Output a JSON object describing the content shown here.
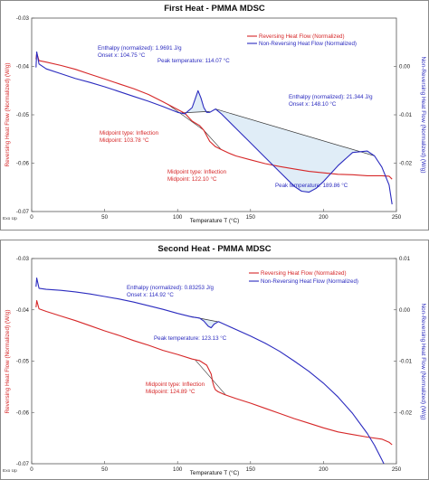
{
  "chart_data": [
    {
      "type": "line",
      "title": "First Heat - PMMA MDSC",
      "xlabel": "Temperature T (°C)",
      "ylabel": "Reversing Heat Flow (Normalized) (W/g)",
      "y2label": "Non-Reversing Heat Flow (Normalized) (W/g)",
      "xlim": [
        0,
        250
      ],
      "ylim": [
        -0.07,
        -0.03
      ],
      "y2lim": [
        -0.03,
        0.01
      ],
      "x_ticks": [
        "0",
        "50",
        "100",
        "150",
        "200",
        "250"
      ],
      "y_ticks": [
        "-0.03",
        "-0.04",
        "-0.05",
        "-0.06",
        "-0.07"
      ],
      "y2_ticks": [
        "0.00",
        "-0.01",
        "-0.02"
      ],
      "exo_label": "Exo Up",
      "legend_position": "top-right",
      "legend": [
        "Reversing Heat Flow (Normalized)",
        "Non-Reversing Heat Flow (Normalized)"
      ],
      "series": [
        {
          "name": "Reversing Heat Flow (Normalized)",
          "axis": "left",
          "color": "#d62728",
          "x": [
            3,
            3.5,
            5,
            10,
            20,
            30,
            40,
            50,
            60,
            70,
            80,
            90,
            100,
            105,
            110,
            115,
            118,
            122,
            126,
            130,
            135,
            140,
            150,
            160,
            170,
            180,
            190,
            200,
            210,
            220,
            230,
            240,
            245,
            247
          ],
          "y": [
            -0.0385,
            -0.0372,
            -0.0388,
            -0.0391,
            -0.0398,
            -0.0406,
            -0.0416,
            -0.0426,
            -0.0436,
            -0.0446,
            -0.0458,
            -0.0473,
            -0.0489,
            -0.0497,
            -0.0513,
            -0.0522,
            -0.0532,
            -0.0555,
            -0.0566,
            -0.0572,
            -0.0579,
            -0.0585,
            -0.0593,
            -0.0601,
            -0.0607,
            -0.0612,
            -0.0617,
            -0.062,
            -0.0623,
            -0.0624,
            -0.0626,
            -0.0626,
            -0.0627,
            -0.0633
          ]
        },
        {
          "name": "Non-Reversing Heat Flow (Normalized)",
          "axis": "right",
          "color": "#2b2bbf",
          "x": [
            3,
            3.5,
            5,
            10,
            20,
            30,
            40,
            50,
            60,
            70,
            80,
            90,
            100,
            105,
            110,
            112,
            114,
            116,
            118,
            120,
            122,
            126,
            130,
            140,
            150,
            160,
            170,
            180,
            185,
            190,
            195,
            200,
            210,
            220,
            230,
            235,
            240,
            245,
            247
          ],
          "y": [
            -0.0002,
            0.003,
            0.0005,
            -0.0005,
            -0.0015,
            -0.0025,
            -0.0033,
            -0.0042,
            -0.0052,
            -0.0062,
            -0.0072,
            -0.0083,
            -0.0095,
            -0.0098,
            -0.0085,
            -0.0068,
            -0.005,
            -0.0065,
            -0.0085,
            -0.0095,
            -0.0095,
            -0.0088,
            -0.0098,
            -0.0128,
            -0.0158,
            -0.0188,
            -0.0218,
            -0.0248,
            -0.0258,
            -0.026,
            -0.0252,
            -0.0238,
            -0.0205,
            -0.0178,
            -0.0175,
            -0.0185,
            -0.0208,
            -0.0245,
            -0.0285
          ]
        }
      ],
      "baselines": [
        {
          "series": "Non-Reversing Heat Flow (Normalized)",
          "x": [
            103,
            122
          ],
          "y": [
            -0.0096,
            -0.0093
          ]
        },
        {
          "series": "Non-Reversing Heat Flow (Normalized)",
          "x": [
            126,
            235
          ],
          "y": [
            -0.0088,
            -0.0185
          ]
        }
      ],
      "annotations": [
        {
          "text": "Enthalpy (normalized): 1.9691 J/g",
          "color": "#2b2bbf"
        },
        {
          "text": "Onset x: 104.75 °C",
          "color": "#2b2bbf"
        },
        {
          "text": "Peak temperature: 114.07 °C",
          "color": "#2b2bbf"
        },
        {
          "text": "Enthalpy (normalized): 21.344 J/g",
          "color": "#2b2bbf"
        },
        {
          "text": "Onset x: 148.10 °C",
          "color": "#2b2bbf"
        },
        {
          "text": "Peak temperature: 189.86 °C",
          "color": "#2b2bbf"
        },
        {
          "text": "Midpoint type: Inflection",
          "color": "#d62728"
        },
        {
          "text": "Midpoint: 103.78 °C",
          "color": "#d62728"
        },
        {
          "text": "Midpoint type: Inflection",
          "color": "#d62728"
        },
        {
          "text": "Midpoint: 122.10 °C",
          "color": "#d62728"
        }
      ]
    },
    {
      "type": "line",
      "title": "Second Heat - PMMA MDSC",
      "xlabel": "Temperature T (°C)",
      "ylabel": "Reversing Heat Flow (Normalized) (W/g)",
      "y2label": "Non-Reversing Heat Flow (Normalized) (W/g)",
      "xlim": [
        0,
        250
      ],
      "ylim": [
        -0.07,
        -0.03
      ],
      "y2lim": [
        -0.03,
        0.01
      ],
      "x_ticks": [
        "0",
        "50",
        "100",
        "150",
        "200",
        "250"
      ],
      "y_ticks": [
        "-0.03",
        "-0.04",
        "-0.05",
        "-0.06",
        "-0.07"
      ],
      "y2_ticks": [
        "0.01",
        "0.00",
        "-0.01",
        "-0.02"
      ],
      "exo_label": "Exo Up",
      "legend_position": "top-right",
      "legend": [
        "Reversing Heat Flow (Normalized)",
        "Non-Reversing Heat Flow (Normalized)"
      ],
      "series": [
        {
          "name": "Reversing Heat Flow (Normalized)",
          "axis": "left",
          "color": "#d62728",
          "x": [
            3,
            3.5,
            5,
            10,
            20,
            30,
            40,
            50,
            60,
            70,
            80,
            90,
            100,
            110,
            115,
            120,
            123,
            124,
            125,
            126,
            128,
            132,
            140,
            150,
            160,
            170,
            180,
            190,
            200,
            210,
            220,
            230,
            240,
            245,
            247
          ],
          "y": [
            -0.0395,
            -0.0382,
            -0.0398,
            -0.0403,
            -0.0412,
            -0.0421,
            -0.0431,
            -0.0441,
            -0.045,
            -0.046,
            -0.0469,
            -0.0479,
            -0.0487,
            -0.0496,
            -0.0499,
            -0.0508,
            -0.0525,
            -0.054,
            -0.055,
            -0.0556,
            -0.056,
            -0.0565,
            -0.0573,
            -0.0582,
            -0.0592,
            -0.0602,
            -0.0612,
            -0.0621,
            -0.063,
            -0.0638,
            -0.0643,
            -0.0648,
            -0.0652,
            -0.0658,
            -0.0663
          ]
        },
        {
          "name": "Non-Reversing Heat Flow (Normalized)",
          "axis": "right",
          "color": "#2b2bbf",
          "x": [
            3,
            3.5,
            5,
            10,
            20,
            30,
            40,
            50,
            60,
            70,
            80,
            90,
            100,
            110,
            115,
            118,
            121,
            123,
            125,
            128,
            135,
            150,
            160,
            170,
            180,
            190,
            200,
            210,
            220,
            230,
            235,
            240,
            244,
            247
          ],
          "y": [
            0.0045,
            0.0062,
            0.0042,
            0.004,
            0.0038,
            0.0035,
            0.0031,
            0.0026,
            0.0021,
            0.0015,
            0.0008,
            0.0001,
            -0.0007,
            -0.0014,
            -0.0016,
            -0.0022,
            -0.0032,
            -0.0035,
            -0.0028,
            -0.0023,
            -0.0032,
            -0.0051,
            -0.0065,
            -0.0081,
            -0.01,
            -0.012,
            -0.0143,
            -0.017,
            -0.0202,
            -0.0241,
            -0.0264,
            -0.0292,
            -0.0315,
            -0.0322
          ]
        }
      ],
      "baselines": [
        {
          "series": "Non-Reversing Heat Flow (Normalized)",
          "x": [
            109,
            129
          ],
          "y": [
            -0.0013,
            -0.0024
          ]
        }
      ],
      "annotations": [
        {
          "text": "Enthalpy (normalized): 0.83253 J/g",
          "color": "#2b2bbf"
        },
        {
          "text": "Onset x: 114.92 °C",
          "color": "#2b2bbf"
        },
        {
          "text": "Peak temperature: 123.13 °C",
          "color": "#2b2bbf"
        },
        {
          "text": "Midpoint type: Inflection",
          "color": "#d62728"
        },
        {
          "text": "Midpoint: 124.89 °C",
          "color": "#d62728"
        }
      ]
    }
  ]
}
